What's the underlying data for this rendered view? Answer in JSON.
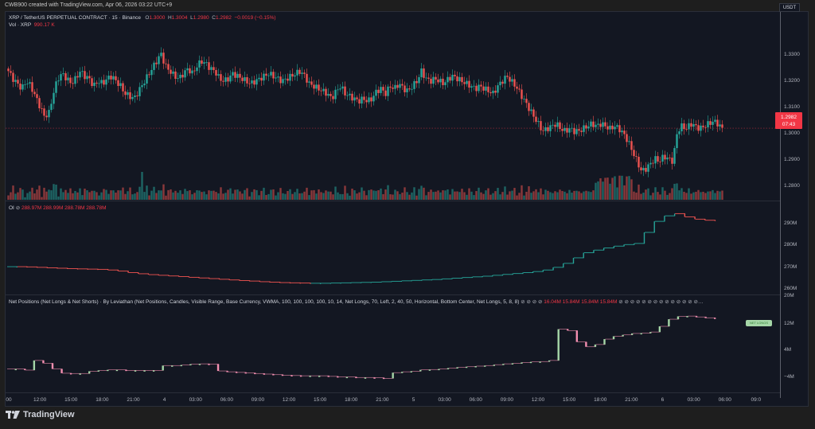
{
  "header": {
    "created_text": "CWB900 created with TradingView.com, Apr 06, 2026 03:22 UTC+9"
  },
  "main_pane": {
    "symbol_text": "XRP / TetherUS PERPETUAL CONTRACT · 15 · Binance",
    "ohlc": {
      "o_label": "O",
      "o_value": "1.3000",
      "h_label": "H",
      "h_value": "1.3004",
      "l_label": "L",
      "l_value": "1.2980",
      "c_label": "C",
      "c_value": "1.2982",
      "change": "−0.0019 (−0.15%)"
    },
    "volume_label": "Vol · XRP",
    "volume_value": "990.17 K",
    "currency_button": "USDT",
    "last_price": "1.2982",
    "countdown": "07:43",
    "price_axis": [
      "1.3300",
      "1.3200",
      "1.3100",
      "1.3000",
      "1.2900",
      "1.2800"
    ]
  },
  "oi_pane": {
    "label": "OI",
    "eye_icon": "⊘",
    "values": [
      "288.97M",
      "288.99M",
      "288.78M",
      "288.78M"
    ],
    "axis": [
      "290M",
      "280M",
      "270M",
      "260M"
    ]
  },
  "net_pane": {
    "title": "Net Positions (Net Longs & Net Shorts) · By Leviathan (Net Positions, Candles, Visible Range, Base Currency, VWMA, 100, 100, 100, 100, 10, 14, Net Longs, 70, Left, 2, 40, 50, Horizontal, Bottom Center, Net Longs, 5, 8, 8)",
    "values": [
      "16.04M",
      "15.84M",
      "15.84M",
      "15.84M"
    ],
    "badge": "NET LONGS",
    "axis": [
      "20M",
      "12M",
      "4M",
      "−4M"
    ]
  },
  "time_axis": [
    "00",
    "12:00",
    "15:00",
    "18:00",
    "21:00",
    "4",
    "03:00",
    "06:00",
    "09:00",
    "12:00",
    "15:00",
    "18:00",
    "21:00",
    "5",
    "03:00",
    "06:00",
    "09:00",
    "12:00",
    "15:00",
    "18:00",
    "21:00",
    "6",
    "03:00",
    "06:00",
    "09:0"
  ],
  "footer": {
    "brand": "TradingView"
  },
  "colors": {
    "up": "#26a69a",
    "down": "#ef5350",
    "net_up": "#a5d6a7",
    "net_down": "#f48fb1",
    "background": "#131722"
  },
  "chart_data": [
    {
      "type": "candlestick",
      "title": "XRP / TetherUS PERPETUAL CONTRACT · 15 · Binance",
      "ylabel": "USDT",
      "ylim": [
        1.275,
        1.337
      ],
      "x_ticks": [
        "00",
        "12:00",
        "15:00",
        "18:00",
        "21:00",
        "4",
        "03:00",
        "06:00",
        "09:00",
        "12:00",
        "15:00",
        "18:00",
        "21:00",
        "5",
        "03:00",
        "06:00",
        "09:00",
        "12:00",
        "15:00",
        "18:00",
        "21:00",
        "6",
        "03:00"
      ],
      "close_path": [
        1.321,
        1.318,
        1.316,
        1.314,
        1.317,
        1.315,
        1.311,
        1.307,
        1.303,
        1.304,
        1.312,
        1.318,
        1.32,
        1.318,
        1.316,
        1.318,
        1.321,
        1.319,
        1.318,
        1.315,
        1.317,
        1.316,
        1.318,
        1.319,
        1.317,
        1.315,
        1.312,
        1.311,
        1.31,
        1.313,
        1.316,
        1.319,
        1.322,
        1.325,
        1.328,
        1.323,
        1.321,
        1.319,
        1.318,
        1.32,
        1.322,
        1.32,
        1.323,
        1.325,
        1.324,
        1.322,
        1.321,
        1.318,
        1.317,
        1.318,
        1.32,
        1.319,
        1.318,
        1.317,
        1.316,
        1.317,
        1.318,
        1.319,
        1.32,
        1.319,
        1.318,
        1.317,
        1.318,
        1.319,
        1.32,
        1.321,
        1.319,
        1.316,
        1.315,
        1.314,
        1.313,
        1.312,
        1.31,
        1.313,
        1.315,
        1.312,
        1.311,
        1.31,
        1.309,
        1.31,
        1.309,
        1.31,
        1.313,
        1.314,
        1.312,
        1.315,
        1.314,
        1.316,
        1.314,
        1.313,
        1.315,
        1.317,
        1.321,
        1.318,
        1.317,
        1.318,
        1.317,
        1.316,
        1.318,
        1.319,
        1.318,
        1.317,
        1.316,
        1.315,
        1.314,
        1.315,
        1.314,
        1.313,
        1.312,
        1.315,
        1.317,
        1.319,
        1.317,
        1.315,
        1.312,
        1.309,
        1.306,
        1.303,
        1.3,
        1.297,
        1.298,
        1.299,
        1.3,
        1.298,
        1.297,
        1.298,
        1.297,
        1.297,
        1.298,
        1.299,
        1.3,
        1.299,
        1.3,
        1.299,
        1.298,
        1.299,
        1.298,
        1.296,
        1.293,
        1.289,
        1.285,
        1.281,
        1.282,
        1.284,
        1.286,
        1.285,
        1.287,
        1.286,
        1.285,
        1.297,
        1.299,
        1.298,
        1.3,
        1.299,
        1.298,
        1.299,
        1.3,
        1.301,
        1.3,
        1.298
      ],
      "last_price": 1.2982
    },
    {
      "type": "bar",
      "title": "Vol · XRP",
      "last_value": "990.17 K",
      "note": "volume bars colored by candle direction; spikes near 21:00 day 3, and the drop near 21:00 day 5"
    },
    {
      "type": "line",
      "title": "OI",
      "ylabel": "",
      "ylim": [
        258,
        294
      ],
      "y_ticks": [
        "290M",
        "280M",
        "270M",
        "260M"
      ],
      "values": [
        269.5,
        269.4,
        269.2,
        269.0,
        268.8,
        268.6,
        268.5,
        268.4,
        268.3,
        268.0,
        267.5,
        266.8,
        266.3,
        265.9,
        265.6,
        265.3,
        265.0,
        264.7,
        264.4,
        264.1,
        263.8,
        263.5,
        263.2,
        263.0,
        262.7,
        262.5,
        262.3,
        262.2,
        262.1,
        262.0,
        262.0,
        262.1,
        262.2,
        262.3,
        262.4,
        262.5,
        262.7,
        262.9,
        263.1,
        263.3,
        263.5,
        263.7,
        264.0,
        264.3,
        264.6,
        264.9,
        265.2,
        265.6,
        266.0,
        266.4,
        266.8,
        267.3,
        268.0,
        269.2,
        271.0,
        273.5,
        275.8,
        277.0,
        278.0,
        278.8,
        279.5,
        280.0,
        285.0,
        290.0,
        292.5,
        293.5,
        292.0,
        291.0,
        290.5,
        290.2
      ],
      "legend_values": [
        "288.97M",
        "288.99M",
        "288.78M",
        "288.78M"
      ]
    },
    {
      "type": "line",
      "title": "Net Positions (Net Longs & Net Shorts) · By Leviathan",
      "ylim": [
        -8,
        20
      ],
      "y_ticks": [
        "20M",
        "12M",
        "4M",
        "−4M"
      ],
      "values": [
        -2.0,
        -2.4,
        1.0,
        0.0,
        -2.0,
        -3.5,
        -3.6,
        -3.6,
        -2.8,
        -2.5,
        -2.3,
        -2.3,
        -2.5,
        -2.5,
        -2.5,
        -2.5,
        -0.8,
        -0.8,
        -0.6,
        -0.3,
        -0.2,
        -0.3,
        -2.7,
        -3.0,
        -3.2,
        -3.4,
        -3.6,
        -3.8,
        -4.0,
        -4.2,
        -4.3,
        -4.4,
        -4.4,
        -4.4,
        -4.6,
        -4.8,
        -4.8,
        -5.0,
        -5.0,
        -5.1,
        -5.3,
        -3.3,
        -3.0,
        -2.8,
        -2.3,
        -2.2,
        -2.0,
        -1.7,
        -1.4,
        -1.2,
        -1.0,
        -0.8,
        -0.5,
        -0.2,
        0.0,
        0.3,
        0.5,
        0.6,
        1.0,
        12.0,
        11.5,
        7.5,
        5.8,
        6.6,
        8.5,
        9.5,
        10.0,
        10.5,
        10.6,
        11.0,
        13.0,
        15.5,
        16.5,
        16.6,
        16.3,
        16.0,
        15.8
      ],
      "legend_values": [
        "16.04M",
        "15.84M",
        "15.84M",
        "15.84M"
      ],
      "badge": "NET LONGS"
    }
  ]
}
